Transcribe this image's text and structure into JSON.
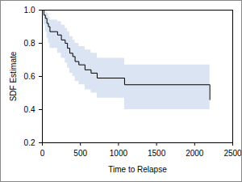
{
  "chart_data": {
    "type": "step",
    "x_label": "Time to Relapse",
    "y_label": "SDF Estimate",
    "x": [
      0,
      20,
      40,
      60,
      80,
      100,
      200,
      250,
      300,
      330,
      360,
      400,
      430,
      480,
      560,
      640,
      720,
      1080,
      2200
    ],
    "series": [
      {
        "type": "area",
        "color": "#dbe4f3",
        "lower": [
          1.0,
          0.91,
          0.87,
          0.83,
          0.8,
          0.77,
          0.74,
          0.71,
          0.68,
          0.65,
          0.62,
          0.6,
          0.57,
          0.55,
          0.52,
          0.5,
          0.47,
          0.4,
          0.4
        ],
        "upper": [
          1.0,
          1.0,
          1.0,
          0.98,
          0.96,
          0.94,
          0.93,
          0.91,
          0.89,
          0.87,
          0.84,
          0.82,
          0.8,
          0.78,
          0.76,
          0.74,
          0.71,
          0.67,
          0.67
        ]
      },
      {
        "type": "line",
        "color": "#000000",
        "values": [
          1.0,
          0.97,
          0.95,
          0.92,
          0.9,
          0.87,
          0.85,
          0.82,
          0.8,
          0.77,
          0.74,
          0.72,
          0.69,
          0.67,
          0.64,
          0.62,
          0.59,
          0.55,
          0.46
        ]
      }
    ],
    "xlim": [
      0,
      2500
    ],
    "xticks": [
      0,
      500,
      1000,
      1500,
      2000,
      2500
    ],
    "ylim": [
      0.2,
      1.0
    ],
    "yticks": [
      0.2,
      0.4,
      0.6,
      0.8,
      {
        "value": 1.0,
        "label": "1.0"
      }
    ],
    "grid": false
  }
}
